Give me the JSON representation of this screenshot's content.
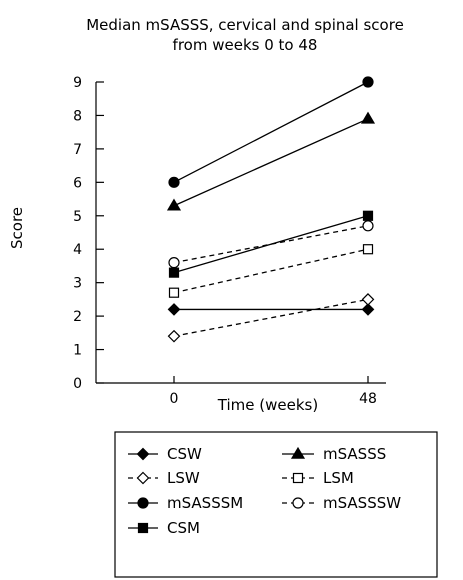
{
  "chart_data": {
    "type": "line",
    "title_lines": [
      "Median mSASSS, cervical and spinal score",
      "from weeks 0 to 48"
    ],
    "xlabel": "Time (weeks)",
    "ylabel": "Score",
    "categories": [
      "0",
      "48"
    ],
    "y_ticks": [
      "0",
      "1",
      "2",
      "3",
      "4",
      "5",
      "6",
      "7",
      "8",
      "9"
    ],
    "ylim": [
      0,
      9
    ],
    "grid": false,
    "legend_position": "bottom",
    "series": [
      {
        "name": "CSW",
        "values": [
          2.2,
          2.2
        ],
        "marker": "diamond",
        "filled": true,
        "dashed": false
      },
      {
        "name": "mSASSS",
        "values": [
          5.3,
          7.9
        ],
        "marker": "triangle",
        "filled": true,
        "dashed": false
      },
      {
        "name": "LSW",
        "values": [
          1.4,
          2.5
        ],
        "marker": "diamond",
        "filled": false,
        "dashed": true
      },
      {
        "name": "LSM",
        "values": [
          2.7,
          4.0
        ],
        "marker": "square",
        "filled": false,
        "dashed": true
      },
      {
        "name": "mSASSSM",
        "values": [
          6.0,
          9.0
        ],
        "marker": "circle",
        "filled": true,
        "dashed": false
      },
      {
        "name": "mSASSSW",
        "values": [
          3.6,
          4.7
        ],
        "marker": "circle",
        "filled": false,
        "dashed": true
      },
      {
        "name": "CSM",
        "values": [
          3.3,
          5.0
        ],
        "marker": "square",
        "filled": true,
        "dashed": false
      }
    ]
  }
}
